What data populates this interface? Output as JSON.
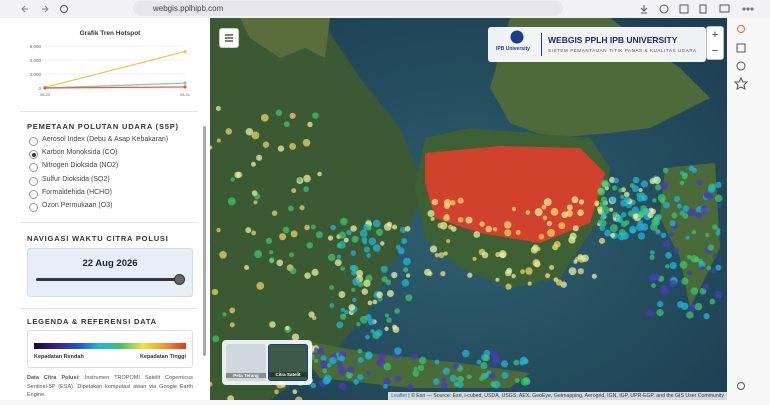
{
  "browser": {
    "url": "webgis.pplhipb.com"
  },
  "chart_data": {
    "type": "line",
    "title": "Grafik Tren Hotspot",
    "categories": [
      "08.20",
      "08.21"
    ],
    "series": [
      {
        "color": "#e6c84a",
        "values": [
          100,
          5200
        ]
      },
      {
        "color": "#8cc98c",
        "values": [
          0,
          700
        ]
      },
      {
        "color": "#e05a4a",
        "values": [
          0,
          150
        ]
      }
    ],
    "ylim": [
      0,
      6000
    ],
    "yticks": [
      0,
      {
        "value": 2000,
        "label": "2,000"
      },
      {
        "value": 4000,
        "label": "4,000"
      },
      {
        "value": 6000,
        "label": "6,000"
      }
    ],
    "grid": true
  },
  "pollutant": {
    "heading": "PEMETAAN POLUTAN UDARA (S5P)",
    "options": [
      "Aerosol Index (Debu & Asap Kebakaran)",
      "Karbon Monoksida (CO)",
      "Nitrogen Dioksida (NO2)",
      "Sulfur Dioksida (SO2)",
      "Formaldehida (HCHO)",
      "Ozon Permukaan (O3)"
    ],
    "selected": 1
  },
  "navigation": {
    "heading": "NAVIGASI WAKTU CITRA POLUSI",
    "date": "22 Aug 2026"
  },
  "legend": {
    "heading": "LEGENDA & REFERENSI DATA",
    "low": "Kepadatan Rendah",
    "high": "Kepadatan Tinggi",
    "source_label": "Data Citra Polusi:",
    "source_text": "Instrumen TROPOMI Satelit Copernicus Sentinel-5P (ESA). Dipetakan komputasi awan via Google Earth Engine."
  },
  "map": {
    "title": "WEBGIS PPLH IPB UNIVERSITY",
    "subtitle": "SISTEM PEMANTAUAN TITIK PANAS & KUALITAS UDARA",
    "logo_text": "IPB University",
    "zoom_in": "+",
    "zoom_out": "−",
    "layers": [
      "Peta Terang",
      "Citra Satelit"
    ],
    "attribution_link": "Leaflet",
    "attribution": "| © Esri — Source: Esri, i-cubed, USDA, USGS, AEX, GeoEye, Getmapping, Aerogrid, IGN, IGP, UPR-EGP, and the GIS User Community"
  }
}
